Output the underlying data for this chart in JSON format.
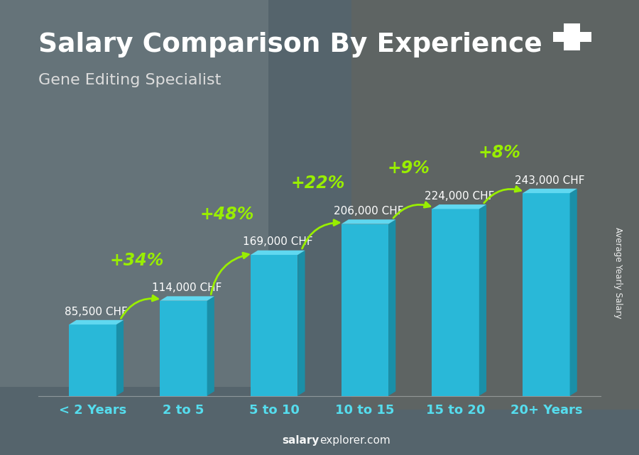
{
  "title": "Salary Comparison By Experience",
  "subtitle": "Gene Editing Specialist",
  "ylabel": "Average Yearly Salary",
  "categories": [
    "< 2 Years",
    "2 to 5",
    "5 to 10",
    "10 to 15",
    "15 to 20",
    "20+ Years"
  ],
  "values": [
    85500,
    114000,
    169000,
    206000,
    224000,
    243000
  ],
  "salary_labels": [
    "85,500 CHF",
    "114,000 CHF",
    "169,000 CHF",
    "206,000 CHF",
    "224,000 CHF",
    "243,000 CHF"
  ],
  "pct_changes": [
    null,
    "+34%",
    "+48%",
    "+22%",
    "+9%",
    "+8%"
  ],
  "bar_front_color": "#29b8d8",
  "bar_top_color": "#60d8f0",
  "bar_side_color": "#1a8fa8",
  "bg_color": "#5a6e78",
  "title_color": "#ffffff",
  "subtitle_color": "#dddddd",
  "label_color": "#ffffff",
  "pct_color": "#99ee00",
  "arrow_color": "#99ee00",
  "xtick_color": "#55ddee",
  "watermark_bold": "salary",
  "watermark_rest": "explorer.com",
  "flag_bg": "#ee3333",
  "ylim": [
    0,
    300000
  ],
  "title_fontsize": 27,
  "subtitle_fontsize": 16,
  "bar_width": 0.52,
  "salary_fontsize": 11,
  "pct_fontsize": 17,
  "xtick_fontsize": 13
}
